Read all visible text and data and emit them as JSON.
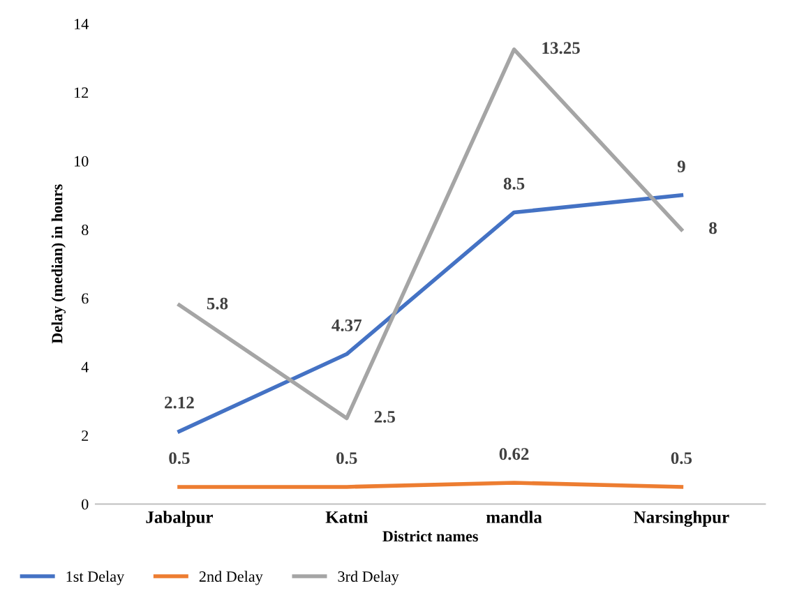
{
  "chart_data": {
    "type": "line",
    "xlabel": "District names",
    "ylabel": "Delay (median) in hours",
    "categories": [
      "Jabalpur",
      "Katni",
      "mandla",
      "Narsinghpur"
    ],
    "series": [
      {
        "name": "1st Delay",
        "color": "#4472c4",
        "values": [
          2.12,
          4.37,
          8.5,
          9
        ]
      },
      {
        "name": "2nd Delay",
        "color": "#ed7d31",
        "values": [
          0.5,
          0.5,
          0.62,
          0.5
        ]
      },
      {
        "name": "3rd Delay",
        "color": "#a5a5a5",
        "values": [
          5.8,
          2.5,
          13.25,
          8
        ]
      }
    ],
    "ylim": [
      0,
      14
    ],
    "yticks": [
      0,
      2,
      4,
      6,
      8,
      10,
      12,
      14
    ],
    "grid": false,
    "legend": "bottom left",
    "data_labels": true,
    "marker": "none",
    "line_style": "solid"
  }
}
